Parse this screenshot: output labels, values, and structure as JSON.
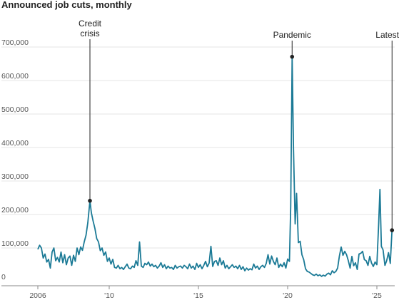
{
  "chart_data": {
    "type": "line",
    "title": "Announced job cuts, monthly",
    "xlabel": "",
    "ylabel": "",
    "ylim": [
      0,
      700000
    ],
    "xlim": [
      2006,
      2026
    ],
    "yticks": [
      0,
      100000,
      200000,
      300000,
      400000,
      500000,
      600000,
      700000
    ],
    "ytick_labels": [
      "0",
      "100,000",
      "200,000",
      "300,000",
      "400,000",
      "500,000",
      "600,000",
      "700,000"
    ],
    "xticks": [
      2006,
      2010,
      2015,
      2020,
      2025
    ],
    "xtick_labels": [
      "2006",
      "'10",
      "'15",
      "'20",
      "'25"
    ],
    "grid": "horizontal",
    "line_color": "#1b7a96",
    "annotations": [
      {
        "label_lines": [
          "Credit",
          "crisis"
        ],
        "x": 2008.92,
        "y": 241000
      },
      {
        "label_lines": [
          "Pandemic"
        ],
        "x": 2020.25,
        "y": 671000
      },
      {
        "label_lines": [
          "Latest"
        ],
        "x": 2025.85,
        "y": 153000
      }
    ],
    "series": [
      {
        "values": [
          [
            2006.0,
            96000
          ],
          [
            2006.1,
            108000
          ],
          [
            2006.2,
            100000
          ],
          [
            2006.3,
            70000
          ],
          [
            2006.4,
            82000
          ],
          [
            2006.5,
            58000
          ],
          [
            2006.6,
            66000
          ],
          [
            2006.7,
            40000
          ],
          [
            2006.8,
            88000
          ],
          [
            2006.9,
            100000
          ],
          [
            2007.0,
            62000
          ],
          [
            2007.1,
            72000
          ],
          [
            2007.2,
            58000
          ],
          [
            2007.3,
            88000
          ],
          [
            2007.4,
            56000
          ],
          [
            2007.5,
            80000
          ],
          [
            2007.6,
            50000
          ],
          [
            2007.7,
            70000
          ],
          [
            2007.8,
            76000
          ],
          [
            2007.9,
            48000
          ],
          [
            2008.0,
            78000
          ],
          [
            2008.1,
            60000
          ],
          [
            2008.2,
            100000
          ],
          [
            2008.3,
            80000
          ],
          [
            2008.4,
            103000
          ],
          [
            2008.5,
            93000
          ],
          [
            2008.6,
            118000
          ],
          [
            2008.7,
            138000
          ],
          [
            2008.8,
            175000
          ],
          [
            2008.92,
            241000
          ],
          [
            2009.0,
            205000
          ],
          [
            2009.1,
            180000
          ],
          [
            2009.2,
            158000
          ],
          [
            2009.3,
            128000
          ],
          [
            2009.4,
            118000
          ],
          [
            2009.5,
            92000
          ],
          [
            2009.6,
            100000
          ],
          [
            2009.7,
            78000
          ],
          [
            2009.8,
            88000
          ],
          [
            2009.9,
            60000
          ],
          [
            2010.0,
            70000
          ],
          [
            2010.1,
            52000
          ],
          [
            2010.2,
            66000
          ],
          [
            2010.3,
            42000
          ],
          [
            2010.4,
            40000
          ],
          [
            2010.5,
            48000
          ],
          [
            2010.6,
            38000
          ],
          [
            2010.7,
            42000
          ],
          [
            2010.8,
            36000
          ],
          [
            2010.9,
            44000
          ],
          [
            2011.0,
            52000
          ],
          [
            2011.1,
            40000
          ],
          [
            2011.2,
            38000
          ],
          [
            2011.3,
            46000
          ],
          [
            2011.4,
            42000
          ],
          [
            2011.5,
            62000
          ],
          [
            2011.6,
            48000
          ],
          [
            2011.7,
            118000
          ],
          [
            2011.8,
            46000
          ],
          [
            2011.9,
            42000
          ],
          [
            2012.0,
            54000
          ],
          [
            2012.1,
            50000
          ],
          [
            2012.2,
            58000
          ],
          [
            2012.3,
            46000
          ],
          [
            2012.4,
            52000
          ],
          [
            2012.5,
            44000
          ],
          [
            2012.6,
            48000
          ],
          [
            2012.7,
            40000
          ],
          [
            2012.8,
            46000
          ],
          [
            2012.9,
            56000
          ],
          [
            2013.0,
            42000
          ],
          [
            2013.1,
            50000
          ],
          [
            2013.2,
            38000
          ],
          [
            2013.3,
            46000
          ],
          [
            2013.4,
            40000
          ],
          [
            2013.5,
            42000
          ],
          [
            2013.6,
            36000
          ],
          [
            2013.7,
            48000
          ],
          [
            2013.8,
            40000
          ],
          [
            2013.9,
            44000
          ],
          [
            2014.0,
            46000
          ],
          [
            2014.1,
            40000
          ],
          [
            2014.2,
            48000
          ],
          [
            2014.3,
            44000
          ],
          [
            2014.4,
            38000
          ],
          [
            2014.5,
            52000
          ],
          [
            2014.6,
            40000
          ],
          [
            2014.7,
            46000
          ],
          [
            2014.8,
            36000
          ],
          [
            2014.9,
            54000
          ],
          [
            2015.0,
            42000
          ],
          [
            2015.1,
            50000
          ],
          [
            2015.2,
            38000
          ],
          [
            2015.3,
            48000
          ],
          [
            2015.4,
            60000
          ],
          [
            2015.5,
            44000
          ],
          [
            2015.6,
            55000
          ],
          [
            2015.7,
            105000
          ],
          [
            2015.8,
            45000
          ],
          [
            2015.9,
            60000
          ],
          [
            2016.0,
            62000
          ],
          [
            2016.1,
            48000
          ],
          [
            2016.2,
            70000
          ],
          [
            2016.3,
            50000
          ],
          [
            2016.4,
            62000
          ],
          [
            2016.5,
            40000
          ],
          [
            2016.6,
            48000
          ],
          [
            2016.7,
            38000
          ],
          [
            2016.8,
            44000
          ],
          [
            2016.9,
            50000
          ],
          [
            2017.0,
            42000
          ],
          [
            2017.1,
            46000
          ],
          [
            2017.2,
            38000
          ],
          [
            2017.3,
            48000
          ],
          [
            2017.4,
            36000
          ],
          [
            2017.5,
            44000
          ],
          [
            2017.6,
            32000
          ],
          [
            2017.7,
            40000
          ],
          [
            2017.8,
            34000
          ],
          [
            2017.9,
            38000
          ],
          [
            2018.0,
            35000
          ],
          [
            2018.1,
            52000
          ],
          [
            2018.2,
            40000
          ],
          [
            2018.3,
            46000
          ],
          [
            2018.4,
            36000
          ],
          [
            2018.5,
            44000
          ],
          [
            2018.6,
            48000
          ],
          [
            2018.7,
            42000
          ],
          [
            2018.8,
            54000
          ],
          [
            2018.9,
            80000
          ],
          [
            2019.0,
            52000
          ],
          [
            2019.1,
            76000
          ],
          [
            2019.2,
            60000
          ],
          [
            2019.3,
            50000
          ],
          [
            2019.4,
            70000
          ],
          [
            2019.5,
            42000
          ],
          [
            2019.6,
            52000
          ],
          [
            2019.7,
            44000
          ],
          [
            2019.8,
            56000
          ],
          [
            2019.9,
            40000
          ],
          [
            2020.0,
            67000
          ],
          [
            2020.1,
            60000
          ],
          [
            2020.17,
            225000
          ],
          [
            2020.25,
            671000
          ],
          [
            2020.33,
            395000
          ],
          [
            2020.42,
            172000
          ],
          [
            2020.5,
            263000
          ],
          [
            2020.6,
            116000
          ],
          [
            2020.7,
            120000
          ],
          [
            2020.8,
            80000
          ],
          [
            2020.9,
            65000
          ],
          [
            2021.0,
            38000
          ],
          [
            2021.1,
            30000
          ],
          [
            2021.2,
            28000
          ],
          [
            2021.3,
            24000
          ],
          [
            2021.4,
            20000
          ],
          [
            2021.5,
            18000
          ],
          [
            2021.6,
            22000
          ],
          [
            2021.7,
            17000
          ],
          [
            2021.8,
            20000
          ],
          [
            2021.9,
            15000
          ],
          [
            2022.0,
            19000
          ],
          [
            2022.1,
            16000
          ],
          [
            2022.2,
            22000
          ],
          [
            2022.3,
            25000
          ],
          [
            2022.4,
            20000
          ],
          [
            2022.5,
            32000
          ],
          [
            2022.6,
            26000
          ],
          [
            2022.7,
            30000
          ],
          [
            2022.8,
            40000
          ],
          [
            2022.9,
            76000
          ],
          [
            2023.0,
            103000
          ],
          [
            2023.1,
            78000
          ],
          [
            2023.2,
            90000
          ],
          [
            2023.3,
            80000
          ],
          [
            2023.4,
            62000
          ],
          [
            2023.5,
            40000
          ],
          [
            2023.6,
            75000
          ],
          [
            2023.7,
            47000
          ],
          [
            2023.8,
            56000
          ],
          [
            2023.9,
            36000
          ],
          [
            2024.0,
            82000
          ],
          [
            2024.1,
            84000
          ],
          [
            2024.2,
            90000
          ],
          [
            2024.3,
            65000
          ],
          [
            2024.4,
            62000
          ],
          [
            2024.5,
            48000
          ],
          [
            2024.6,
            75000
          ],
          [
            2024.7,
            55000
          ],
          [
            2024.8,
            45000
          ],
          [
            2024.9,
            58000
          ],
          [
            2025.0,
            50000
          ],
          [
            2025.1,
            172000
          ],
          [
            2025.17,
            275000
          ],
          [
            2025.25,
            105000
          ],
          [
            2025.35,
            94000
          ],
          [
            2025.45,
            48000
          ],
          [
            2025.55,
            62000
          ],
          [
            2025.65,
            86000
          ],
          [
            2025.75,
            54000
          ],
          [
            2025.85,
            153000
          ]
        ]
      }
    ]
  }
}
